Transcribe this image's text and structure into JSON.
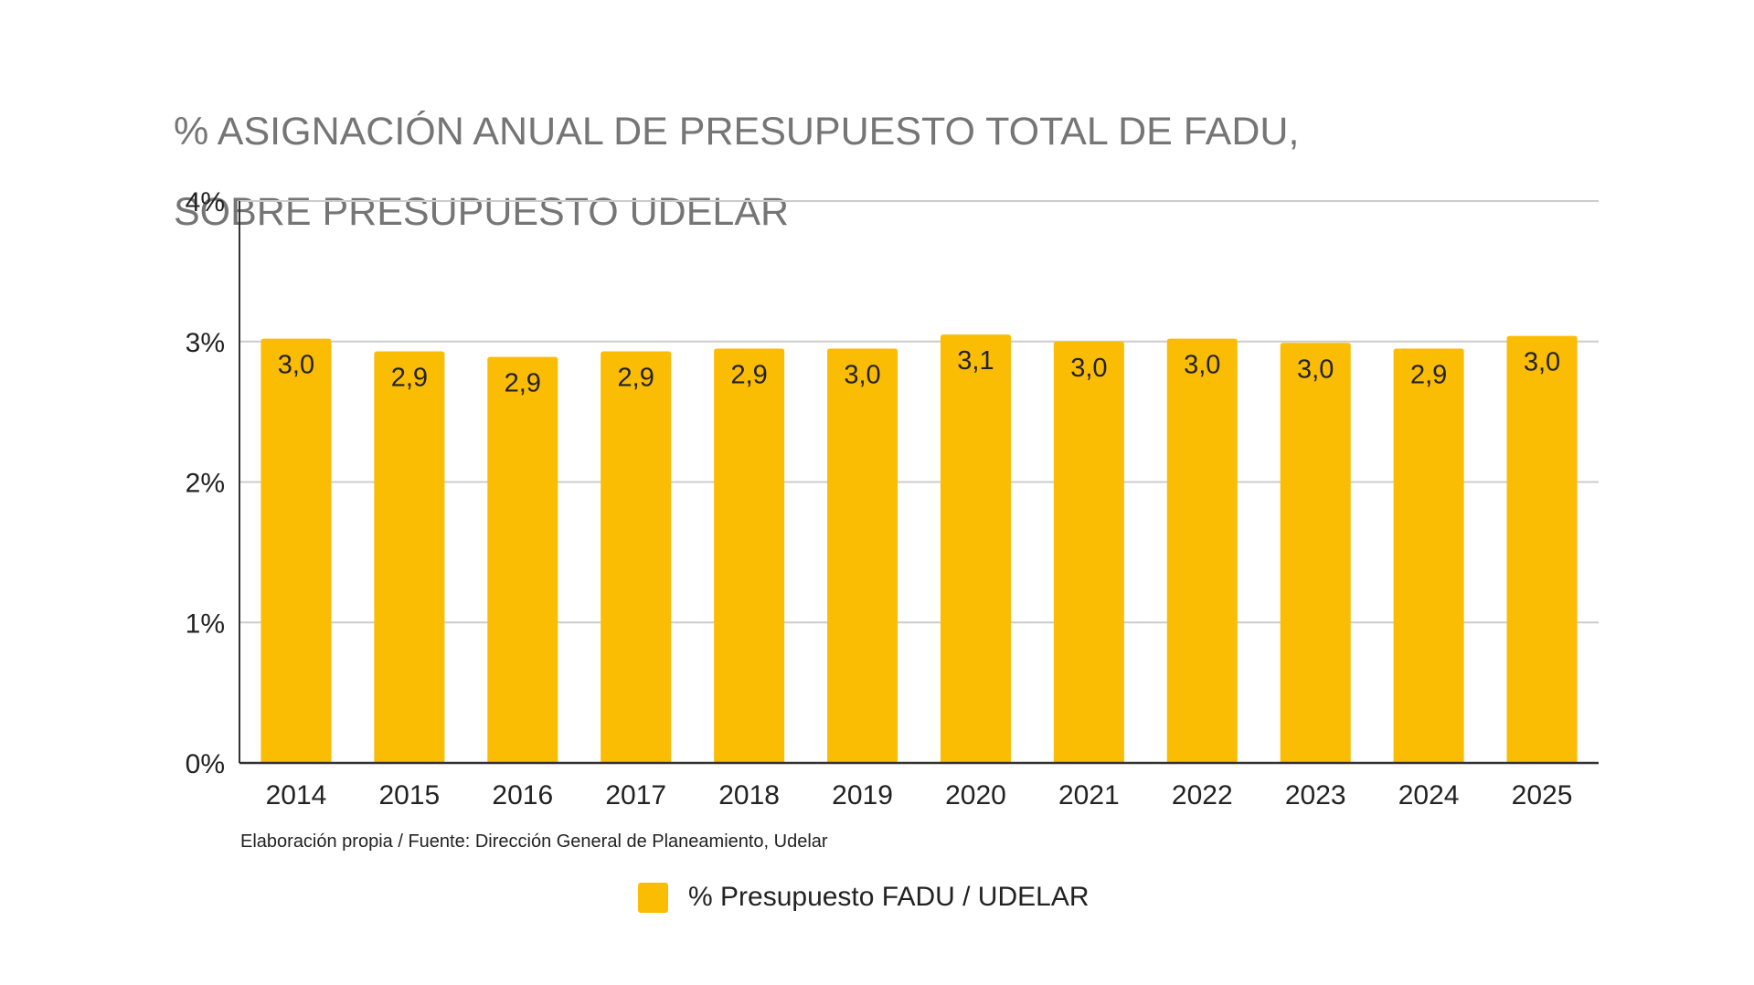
{
  "chart_data": {
    "type": "bar",
    "title_lines": [
      "% ASIGNACIÓN ANUAL DE PRESUPUESTO TOTAL DE FADU,",
      "SOBRE PRESUPUESTO UDELAR"
    ],
    "categories": [
      "2014",
      "2015",
      "2016",
      "2017",
      "2018",
      "2019",
      "2020",
      "2021",
      "2022",
      "2023",
      "2024",
      "2025"
    ],
    "series": [
      {
        "name": "% Presupuesto FADU / UDELAR",
        "values": [
          3.02,
          2.93,
          2.89,
          2.93,
          2.95,
          2.95,
          3.05,
          3.0,
          3.02,
          2.99,
          2.95,
          3.04
        ],
        "labels": [
          "3,0",
          "2,9",
          "2,9",
          "2,9",
          "2,9",
          "3,0",
          "3,1",
          "3,0",
          "3,0",
          "3,0",
          "2,9",
          "3,0"
        ],
        "color": "#FBBC04"
      }
    ],
    "y_ticks": [
      0,
      1,
      2,
      3,
      4
    ],
    "y_tick_labels": [
      "0%",
      "1%",
      "2%",
      "3%",
      "4%"
    ],
    "ylim": [
      0,
      4
    ],
    "grid": true,
    "legend_position": "bottom",
    "source_note": "Elaboración propia / Fuente: Dirección General de Planeamiento, Udelar"
  }
}
